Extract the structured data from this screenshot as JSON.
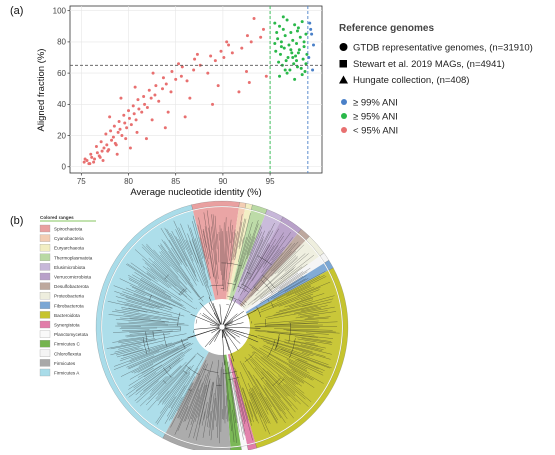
{
  "panel_a_label": "(a)",
  "panel_b_label": "(b)",
  "chart_data": [
    {
      "type": "scatter",
      "title": "",
      "xlabel": "Average nucleotide identity (%)",
      "ylabel": "Aligned fraction (%)",
      "xlim": [
        73.8,
        100.5
      ],
      "ylim": [
        -4,
        103
      ],
      "xticks": [
        "75",
        "80",
        "85",
        "90",
        "95"
      ],
      "yticks": [
        "0",
        "20",
        "40",
        "60",
        "80",
        "100"
      ],
      "grid": true,
      "reference_lines": {
        "vertical": [
          95,
          99
        ],
        "horizontal": [
          65
        ]
      },
      "reference_legend": {
        "title": "Reference genomes",
        "entries": [
          {
            "shape": "circle",
            "label": "GTDB representative genomes, (n=31910)"
          },
          {
            "shape": "square",
            "label": "Stewart et al. 2019 MAGs, (n=4941)"
          },
          {
            "shape": "triangle",
            "label": "Hungate collection, (n=408)"
          }
        ]
      },
      "series": [
        {
          "name": "≥ 99% ANI",
          "color": "#4a80c8",
          "x": [
            99.2,
            99.4,
            99.6,
            99.1,
            99.5,
            99.3
          ],
          "y": [
            92,
            85,
            78,
            70,
            62,
            88
          ]
        },
        {
          "name": "≥ 95% ANI",
          "color": "#2ab84a",
          "x": [
            95.5,
            96.0,
            96.4,
            96.8,
            97.2,
            97.6,
            98.0,
            98.4,
            98.8,
            95.8,
            96.2,
            96.6,
            97.0,
            97.4,
            97.8,
            98.2,
            98.6,
            95.6,
            96.1,
            96.5,
            96.9,
            97.3,
            97.7,
            98.1,
            98.5,
            98.9,
            95.9,
            96.3,
            96.7,
            97.1,
            97.5,
            97.9,
            98.3,
            98.7,
            96.0,
            96.8,
            97.6,
            98.4,
            95.7,
            97.2,
            98.6,
            96.4,
            97.9,
            98.8,
            96.2,
            97.4,
            98.0,
            95.5,
            96.6,
            97.8
          ],
          "y": [
            92,
            90,
            88,
            94,
            86,
            91,
            89,
            93,
            85,
            82,
            80,
            84,
            78,
            81,
            79,
            83,
            77,
            74,
            72,
            76,
            70,
            73,
            71,
            75,
            69,
            72,
            67,
            65,
            68,
            62,
            66,
            64,
            63,
            61,
            58,
            60,
            56,
            59,
            86,
            75,
            80,
            96,
            87,
            66,
            77,
            70,
            73,
            79,
            62,
            68
          ]
        },
        {
          "name": "< 95% ANI",
          "color": "#e87070",
          "x": [
            75.3,
            75.6,
            75.9,
            76.1,
            76.4,
            76.7,
            76.9,
            77.2,
            77.4,
            77.7,
            77.9,
            78.2,
            78.4,
            78.6,
            78.9,
            79.1,
            79.3,
            79.6,
            79.8,
            80.1,
            80.3,
            80.6,
            80.8,
            81.1,
            81.4,
            81.7,
            82.0,
            82.4,
            82.8,
            83.2,
            83.6,
            84.0,
            84.5,
            85.0,
            85.6,
            86.2,
            86.9,
            87.6,
            88.4,
            89.2,
            90.1,
            91.0,
            92.0,
            93.0,
            94.0,
            75.4,
            76.0,
            76.6,
            77.1,
            77.6,
            78.1,
            78.5,
            79.0,
            79.5,
            80.0,
            80.5,
            81.0,
            81.6,
            82.2,
            82.9,
            83.7,
            84.6,
            85.7,
            87.0,
            88.7,
            90.6,
            92.6,
            94.3,
            76.3,
            77.0,
            77.8,
            78.7,
            79.7,
            80.9,
            82.5,
            84.2,
            86.5,
            89.5,
            92.5,
            75.8,
            77.3,
            78.8,
            80.2,
            81.9,
            83.9,
            86.0,
            88.9,
            91.7,
            94.6,
            93.3,
            79.2,
            80.7,
            87.3,
            90.4,
            78.0,
            82.6,
            85.3,
            89.8,
            92.8
          ],
          "y": [
            3,
            4,
            2,
            6,
            5,
            9,
            7,
            10,
            12,
            14,
            11,
            17,
            19,
            15,
            22,
            24,
            20,
            28,
            25,
            31,
            27,
            34,
            30,
            37,
            35,
            40,
            38,
            44,
            46,
            42,
            50,
            53,
            48,
            56,
            58,
            55,
            62,
            65,
            60,
            68,
            70,
            73,
            76,
            80,
            83,
            5,
            8,
            13,
            16,
            21,
            23,
            26,
            29,
            33,
            36,
            39,
            43,
            45,
            49,
            52,
            57,
            61,
            64,
            69,
            71,
            78,
            84,
            88,
            3,
            6,
            10,
            14,
            18,
            22,
            30,
            35,
            44,
            52,
            61,
            2,
            4,
            8,
            12,
            18,
            25,
            32,
            40,
            48,
            58,
            95,
            44,
            51,
            72,
            80,
            32,
            60,
            66,
            74,
            54
          ]
        }
      ]
    },
    {
      "type": "tree",
      "title": "",
      "legend_title": "Colored ranges",
      "ranges": [
        {
          "label": "Spirochaetota",
          "color": "#e9a0a0"
        },
        {
          "label": "Cyanobacteria",
          "color": "#f3cdb3"
        },
        {
          "label": "Euryarchaeota",
          "color": "#f2eec2"
        },
        {
          "label": "Thermoplasmatota",
          "color": "#b9d9a3"
        },
        {
          "label": "Elusimicrobiota",
          "color": "#c7b7d9"
        },
        {
          "label": "Verrucomicrobiota",
          "color": "#b8a0c9"
        },
        {
          "label": "Desulfobacterota",
          "color": "#bda89d"
        },
        {
          "label": "Proteobacteria",
          "color": "#eeeede"
        },
        {
          "label": "Fibrobacterota",
          "color": "#7ba7d4"
        },
        {
          "label": "Bacteroidota",
          "color": "#c6c42e"
        },
        {
          "label": "Synergistota",
          "color": "#e17da9"
        },
        {
          "label": "Planctomycetota",
          "color": "#f9f9f9"
        },
        {
          "label": "Firmicutes C",
          "color": "#74b44e"
        },
        {
          "label": "Chloroflexota",
          "color": "#f4f4f4"
        },
        {
          "label": "Firmicutes",
          "color": "#a8a8a8"
        },
        {
          "label": "Firmicutes A",
          "color": "#a9dce9"
        }
      ],
      "sector_order": [
        "Firmicutes A",
        "Spirochaetota",
        "Cyanobacteria",
        "Euryarchaeota",
        "Thermoplasmatota",
        "Elusimicrobiota",
        "Verrucomicrobiota",
        "Desulfobacterota",
        "Proteobacteria",
        "Chloroflexota",
        "Fibrobacterota",
        "Bacteroidota",
        "Synergistota",
        "Planctomycetota",
        "Firmicutes C",
        "Firmicutes"
      ],
      "sector_spans_deg": [
        138,
        22,
        3,
        3,
        7,
        8,
        10,
        5,
        10,
        4,
        4,
        102,
        4,
        3,
        5,
        32
      ]
    }
  ]
}
